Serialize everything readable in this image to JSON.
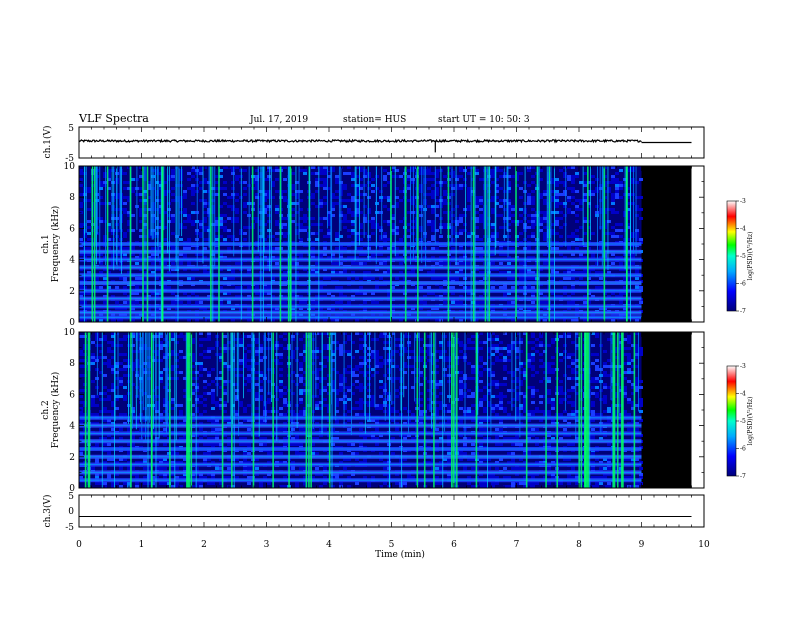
{
  "header": {
    "title": "VLF Spectra",
    "date": "Jul. 17, 2019",
    "station": "station= HUS",
    "start": "start  UT =   10: 50: 3"
  },
  "colors": {
    "colormap": [
      "#00007a",
      "#0000ff",
      "#00aaff",
      "#00ffcc",
      "#00ff00",
      "#ffff00",
      "#ff0000",
      "#ffffff"
    ],
    "background": "#ffffff",
    "no_data": "#000000"
  },
  "chart_data": [
    {
      "type": "line",
      "name": "ch1-waveform",
      "ylabel": "ch.1(V)",
      "ylim": [
        -5,
        5
      ],
      "yticks": [
        "5",
        "-5"
      ],
      "xlim": [
        0,
        10
      ],
      "x": [
        0,
        9,
        9.01,
        9.8
      ],
      "y": [
        0.5,
        0.5,
        0,
        0
      ],
      "note_values": "noise-like trace around 0.5 V until 9 min, then flat"
    },
    {
      "type": "heatmap",
      "name": "ch1-spectrogram",
      "ylabel": "ch.1\nFrequency (kHz)",
      "ylabel_line1": "ch.1",
      "ylabel_line2": "Frequency (kHz)",
      "ylim": [
        0,
        10
      ],
      "yticks": [
        "0",
        "2",
        "4",
        "6",
        "8",
        "10"
      ],
      "xlim": [
        0,
        10
      ],
      "data_end_min": 9.0,
      "plot_end_min": 9.8,
      "bands_khz": [
        0.3,
        0.6,
        1.0,
        1.5,
        2.0,
        2.5,
        3.0,
        3.5,
        4.0,
        4.5,
        5.0
      ],
      "colorbar": {
        "label": "log(PSD)(V²/Hz)",
        "range": [
          -7,
          -3
        ],
        "ticks": [
          "-3",
          "-4",
          "-5",
          "-6",
          "-7"
        ]
      }
    },
    {
      "type": "heatmap",
      "name": "ch2-spectrogram",
      "ylabel": "ch.2\nFrequency (kHz)",
      "ylabel_line1": "ch.2",
      "ylabel_line2": "Frequency (kHz)",
      "ylim": [
        0,
        10
      ],
      "yticks": [
        "0",
        "2",
        "4",
        "6",
        "8",
        "10"
      ],
      "xlim": [
        0,
        10
      ],
      "data_end_min": 9.0,
      "plot_end_min": 9.8,
      "bands_khz": [
        0.5,
        1.0,
        1.5,
        2.0,
        2.5,
        3.0,
        3.5,
        4.0,
        4.5
      ],
      "colorbar": {
        "label": "log(PSD)(V²/Hz)",
        "range": [
          -7,
          -3
        ],
        "ticks": [
          "-3",
          "-4",
          "-5",
          "-6",
          "-7"
        ]
      }
    },
    {
      "type": "line",
      "name": "ch3-waveform",
      "ylabel": "ch.3(V)",
      "ylim": [
        -5,
        5
      ],
      "yticks": [
        "5",
        "0",
        "-5"
      ],
      "xlim": [
        0,
        10
      ],
      "x": [
        0,
        9.8
      ],
      "y": [
        -1.7,
        -1.7
      ]
    }
  ],
  "xaxis": {
    "label": "Time (min)",
    "ticks": [
      "0",
      "1",
      "2",
      "3",
      "4",
      "5",
      "6",
      "7",
      "8",
      "9",
      "10"
    ]
  }
}
